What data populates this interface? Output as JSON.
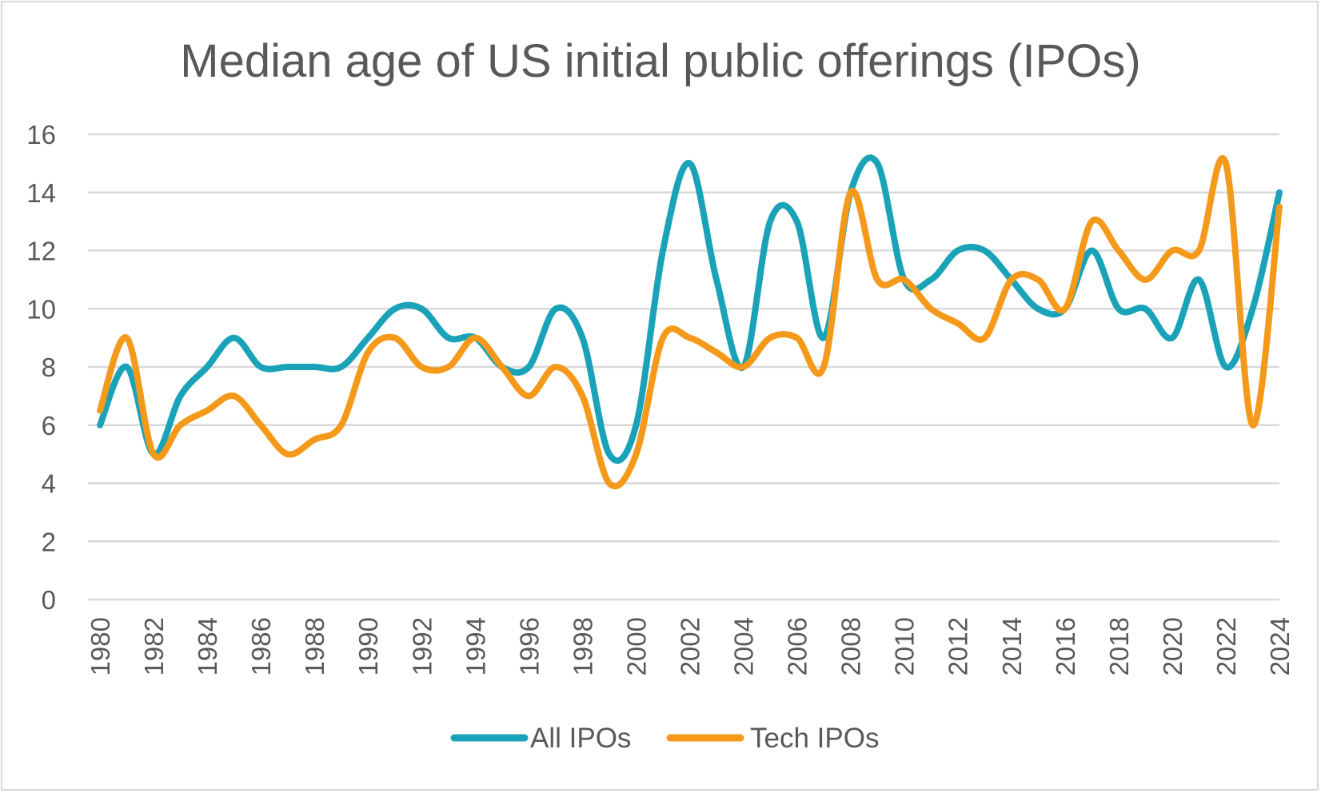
{
  "chart_data": {
    "type": "line",
    "title": "Median age of US initial public offerings (IPOs)",
    "xlabel": "",
    "ylabel": "",
    "ylim": [
      0,
      16
    ],
    "yticks": [
      0,
      2,
      4,
      6,
      8,
      10,
      12,
      14,
      16
    ],
    "x": [
      1980,
      1981,
      1982,
      1983,
      1984,
      1985,
      1986,
      1987,
      1988,
      1989,
      1990,
      1991,
      1992,
      1993,
      1994,
      1995,
      1996,
      1997,
      1998,
      1999,
      2000,
      2001,
      2002,
      2003,
      2004,
      2005,
      2006,
      2007,
      2008,
      2009,
      2010,
      2011,
      2012,
      2013,
      2014,
      2015,
      2016,
      2017,
      2018,
      2019,
      2020,
      2021,
      2022,
      2023,
      2024
    ],
    "xtick_labels": [
      "1980",
      "1982",
      "1984",
      "1986",
      "1988",
      "1990",
      "1992",
      "1994",
      "1996",
      "1998",
      "2000",
      "2002",
      "2004",
      "2006",
      "2008",
      "2010",
      "2012",
      "2014",
      "2016",
      "2018",
      "2020",
      "2022",
      "2024"
    ],
    "grid": true,
    "legend_position": "bottom",
    "series": [
      {
        "name": "All IPOs",
        "color": "#1aa3b8",
        "values": [
          6,
          8,
          5,
          7,
          8,
          9,
          8,
          8,
          8,
          8,
          9,
          10,
          10,
          9,
          9,
          8,
          8,
          10,
          9,
          5,
          6,
          12,
          15,
          11,
          8,
          13,
          13,
          9,
          14,
          15,
          11,
          11,
          12,
          12,
          11,
          10,
          10,
          12,
          10,
          10,
          9,
          11,
          8,
          10,
          14
        ]
      },
      {
        "name": "Tech IPOs",
        "color": "#f4991a",
        "values": [
          6.5,
          9,
          5,
          6,
          6.5,
          7,
          6,
          5,
          5.5,
          6,
          8.5,
          9,
          8,
          8,
          9,
          8,
          7,
          8,
          7,
          4,
          5,
          9,
          9,
          8.5,
          8,
          9,
          9,
          8,
          14,
          11,
          11,
          10,
          9.5,
          9,
          11,
          11,
          10,
          13,
          12,
          11,
          12,
          12,
          15,
          6,
          13.5
        ]
      }
    ]
  }
}
